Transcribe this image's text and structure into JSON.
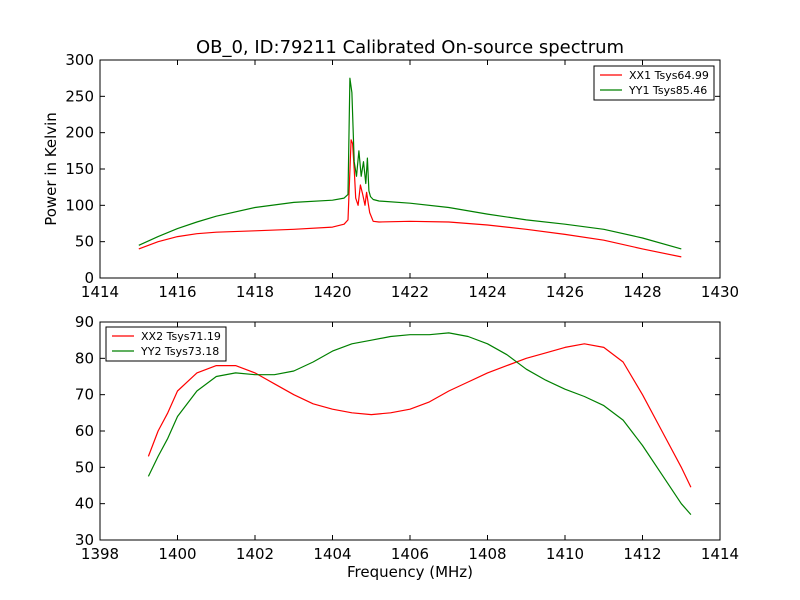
{
  "figure": {
    "title": "OB_0, ID:79211 Calibrated On-source spectrum"
  },
  "chart_data": [
    {
      "type": "line",
      "xlabel": "",
      "ylabel": "Power in Kelvin",
      "xlim": [
        1414,
        1430
      ],
      "ylim": [
        0,
        300
      ],
      "xticks": [
        "1414",
        "1416",
        "1418",
        "1420",
        "1422",
        "1424",
        "1426",
        "1428",
        "1430"
      ],
      "yticks": [
        "0",
        "50",
        "100",
        "150",
        "200",
        "250",
        "300"
      ],
      "legend_position": "top-right",
      "series": [
        {
          "name": "XX1 Tsys64.99",
          "color": "#ff0000",
          "x": [
            1415.0,
            1415.5,
            1416.0,
            1416.5,
            1417.0,
            1418.0,
            1419.0,
            1420.0,
            1420.3,
            1420.4,
            1420.48,
            1420.52,
            1420.56,
            1420.6,
            1420.66,
            1420.72,
            1420.78,
            1420.84,
            1420.88,
            1420.92,
            1420.96,
            1421.05,
            1421.2,
            1422.0,
            1423.0,
            1424.0,
            1425.0,
            1426.0,
            1427.0,
            1428.0,
            1429.0
          ],
          "y": [
            40,
            50,
            57,
            61,
            63,
            65,
            67,
            70,
            74,
            80,
            190,
            185,
            150,
            110,
            100,
            128,
            115,
            100,
            118,
            103,
            90,
            78,
            77,
            78,
            77,
            73,
            67,
            60,
            52,
            40,
            29
          ]
        },
        {
          "name": "YY1 Tsys85.46",
          "color": "#008000",
          "x": [
            1415.0,
            1415.5,
            1416.0,
            1416.5,
            1417.0,
            1418.0,
            1419.0,
            1420.0,
            1420.3,
            1420.4,
            1420.45,
            1420.5,
            1420.56,
            1420.62,
            1420.68,
            1420.74,
            1420.8,
            1420.86,
            1420.9,
            1420.94,
            1420.98,
            1421.05,
            1421.2,
            1422.0,
            1423.0,
            1424.0,
            1425.0,
            1426.0,
            1427.0,
            1428.0,
            1429.0
          ],
          "y": [
            45,
            57,
            68,
            77,
            85,
            97,
            104,
            107,
            110,
            115,
            275,
            255,
            160,
            140,
            175,
            140,
            160,
            130,
            165,
            120,
            112,
            108,
            106,
            103,
            97,
            88,
            80,
            74,
            67,
            55,
            40
          ]
        }
      ]
    },
    {
      "type": "line",
      "xlabel": "Frequency (MHz)",
      "ylabel": "",
      "xlim": [
        1398,
        1414
      ],
      "ylim": [
        30,
        90
      ],
      "xticks": [
        "1398",
        "1400",
        "1402",
        "1404",
        "1406",
        "1408",
        "1410",
        "1412",
        "1414"
      ],
      "yticks": [
        "30",
        "40",
        "50",
        "60",
        "70",
        "80",
        "90"
      ],
      "legend_position": "top-left",
      "series": [
        {
          "name": "XX2 Tsys71.19",
          "color": "#ff0000",
          "x": [
            1399.25,
            1399.5,
            1399.75,
            1400.0,
            1400.5,
            1401.0,
            1401.5,
            1402.0,
            1402.5,
            1403.0,
            1403.5,
            1404.0,
            1404.5,
            1405.0,
            1405.5,
            1406.0,
            1406.5,
            1407.0,
            1407.5,
            1408.0,
            1408.5,
            1409.0,
            1409.5,
            1410.0,
            1410.5,
            1411.0,
            1411.5,
            1412.0,
            1412.5,
            1413.0,
            1413.25
          ],
          "y": [
            53,
            60,
            65,
            71,
            76,
            78,
            78,
            76,
            73,
            70,
            67.5,
            66,
            65,
            64.5,
            65,
            66,
            68,
            71,
            73.5,
            76,
            78,
            80,
            81.5,
            83,
            84,
            83,
            79,
            70,
            60,
            50,
            44.5
          ]
        },
        {
          "name": "YY2 Tsys73.18",
          "color": "#008000",
          "x": [
            1399.25,
            1399.5,
            1399.75,
            1400.0,
            1400.5,
            1401.0,
            1401.5,
            1402.0,
            1402.5,
            1403.0,
            1403.5,
            1404.0,
            1404.5,
            1405.0,
            1405.5,
            1406.0,
            1406.5,
            1407.0,
            1407.5,
            1408.0,
            1408.5,
            1409.0,
            1409.5,
            1410.0,
            1410.5,
            1411.0,
            1411.5,
            1412.0,
            1412.5,
            1413.0,
            1413.25
          ],
          "y": [
            47.5,
            53,
            58,
            64,
            71,
            75,
            76,
            75.5,
            75.5,
            76.5,
            79,
            82,
            84,
            85,
            86,
            86.5,
            86.5,
            87,
            86,
            84,
            81,
            77,
            74,
            71.5,
            69.5,
            67,
            63,
            56,
            48,
            40,
            37
          ]
        }
      ]
    }
  ]
}
